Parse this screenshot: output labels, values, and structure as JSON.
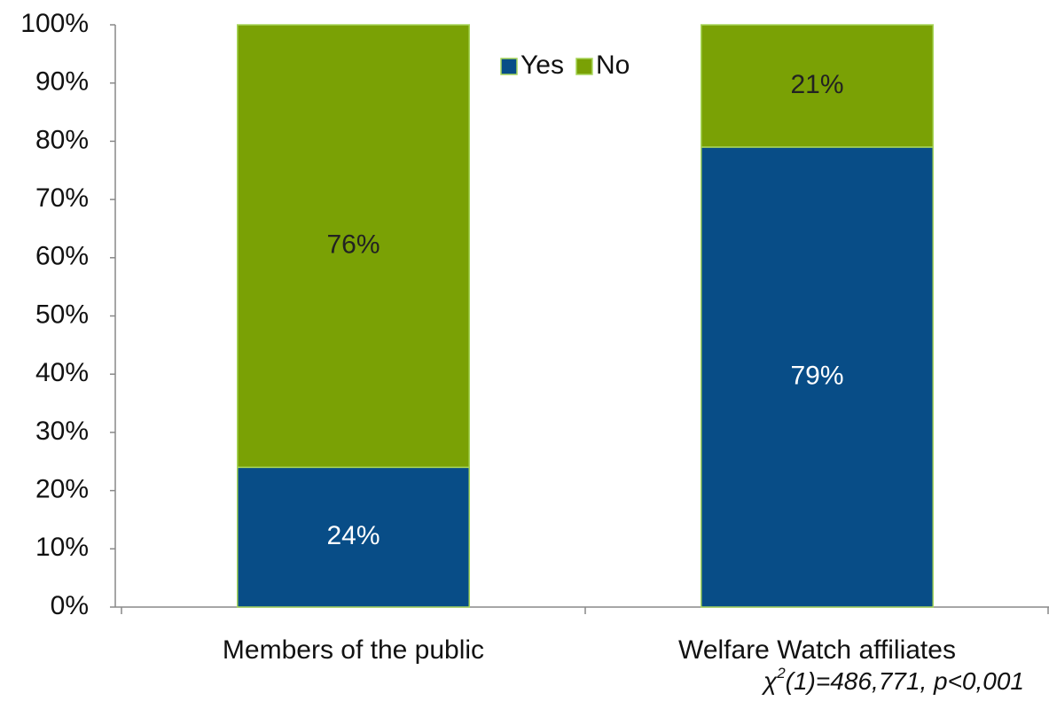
{
  "chart_data": {
    "type": "stacked_bar",
    "categories": [
      "Members of the public",
      "Welfare Watch affiliates"
    ],
    "series": [
      {
        "name": "Yes",
        "color": "#084d87",
        "values": [
          24,
          79
        ],
        "value_labels": [
          "24%",
          "79%"
        ]
      },
      {
        "name": "No",
        "color": "#7aa105",
        "values": [
          76,
          21
        ],
        "value_labels": [
          "76%",
          "21%"
        ]
      }
    ],
    "ylim": [
      0,
      100
    ],
    "yticks": [
      {
        "value": 0,
        "label": "0%"
      },
      {
        "value": 10,
        "label": "10%"
      },
      {
        "value": 20,
        "label": "20%"
      },
      {
        "value": 30,
        "label": "30%"
      },
      {
        "value": 40,
        "label": "40%"
      },
      {
        "value": 50,
        "label": "50%"
      },
      {
        "value": 60,
        "label": "60%"
      },
      {
        "value": 70,
        "label": "70%"
      },
      {
        "value": 80,
        "label": "80%"
      },
      {
        "value": 90,
        "label": "90%"
      },
      {
        "value": 100,
        "label": "100%"
      }
    ],
    "legend": "top",
    "annotation": {
      "symbol": "χ",
      "superscript": "2",
      "text": "(1)=486,771,  p<0,001"
    }
  }
}
